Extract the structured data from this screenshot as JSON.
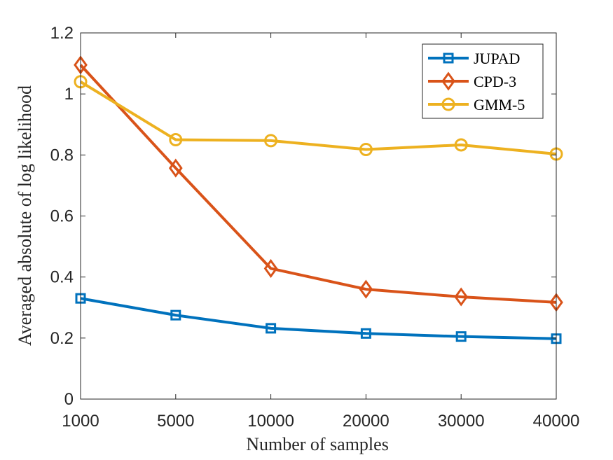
{
  "chart_data": {
    "type": "line",
    "title": "",
    "xlabel": "Number of samples",
    "ylabel": "Averaged absolute of log likelihood",
    "categories": [
      "1000",
      "5000",
      "10000",
      "20000",
      "30000",
      "40000"
    ],
    "ylim": [
      0,
      1.2
    ],
    "yticks": [
      "0",
      "0.2",
      "0.4",
      "0.6",
      "0.8",
      "1",
      "1.2"
    ],
    "grid": false,
    "legend_position": "top-right",
    "series": [
      {
        "name": "JUPAD",
        "marker": "square",
        "color": "#0072BD",
        "values": [
          0.33,
          0.275,
          0.232,
          0.215,
          0.205,
          0.198
        ]
      },
      {
        "name": "CPD-3",
        "marker": "diamond",
        "color": "#D95319",
        "values": [
          1.095,
          0.757,
          0.428,
          0.36,
          0.335,
          0.317
        ]
      },
      {
        "name": "GMM-5",
        "marker": "circle",
        "color": "#EDB120",
        "values": [
          1.04,
          0.85,
          0.847,
          0.818,
          0.833,
          0.803
        ]
      }
    ]
  }
}
